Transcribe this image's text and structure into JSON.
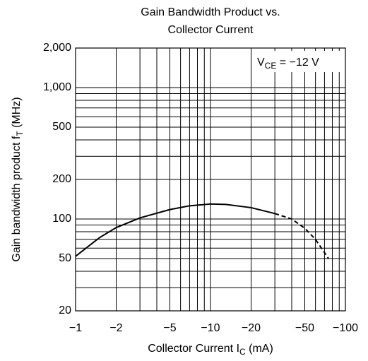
{
  "chart_data": {
    "type": "line",
    "title": [
      "Gain Bandwidth Product vs.",
      "Collector Current"
    ],
    "xlabel": {
      "main": "Collector Current  I",
      "sub": "C",
      "tail": "  (mA)"
    },
    "ylabel": {
      "main": "Gain bandwidth product  f",
      "sub": "T",
      "tail": "  (MHz)"
    },
    "annotation": {
      "main": "V",
      "sub": "CE",
      "tail": " = −12 V"
    },
    "xscale": "log",
    "yscale": "log",
    "grid": true,
    "color": "#000000",
    "xlim": [
      -1,
      -100
    ],
    "ylim": [
      20,
      2000
    ],
    "xticks": [
      {
        "value": -1,
        "label": "−1"
      },
      {
        "value": -2,
        "label": "−2"
      },
      {
        "value": -5,
        "label": "−5"
      },
      {
        "value": -10,
        "label": "−10"
      },
      {
        "value": -20,
        "label": "−20"
      },
      {
        "value": -50,
        "label": "−50"
      },
      {
        "value": -100,
        "label": "−100"
      }
    ],
    "yticks": [
      20,
      50,
      100,
      200,
      500,
      {
        "value": 1000,
        "label": "1,000"
      },
      {
        "value": 2000,
        "label": "2,000"
      }
    ],
    "minor_xticks": [
      -3,
      -4,
      -6,
      -7,
      -8,
      -9,
      -30,
      -40,
      -60,
      -70,
      -80,
      -90
    ],
    "minor_yticks": [
      30,
      40,
      60,
      70,
      80,
      90,
      300,
      400,
      600,
      700,
      800,
      900
    ],
    "series": [
      {
        "dash": false,
        "x": [
          -1,
          -1.5,
          -2,
          -3,
          -5,
          -7,
          -10,
          -13,
          -20,
          -30
        ],
        "values": [
          52,
          72,
          86,
          102,
          118,
          126,
          130,
          129,
          122,
          110
        ]
      },
      {
        "dash": true,
        "x": [
          -30,
          -40,
          -50,
          -60,
          -75
        ],
        "values": [
          110,
          100,
          85,
          70,
          50
        ]
      }
    ]
  }
}
